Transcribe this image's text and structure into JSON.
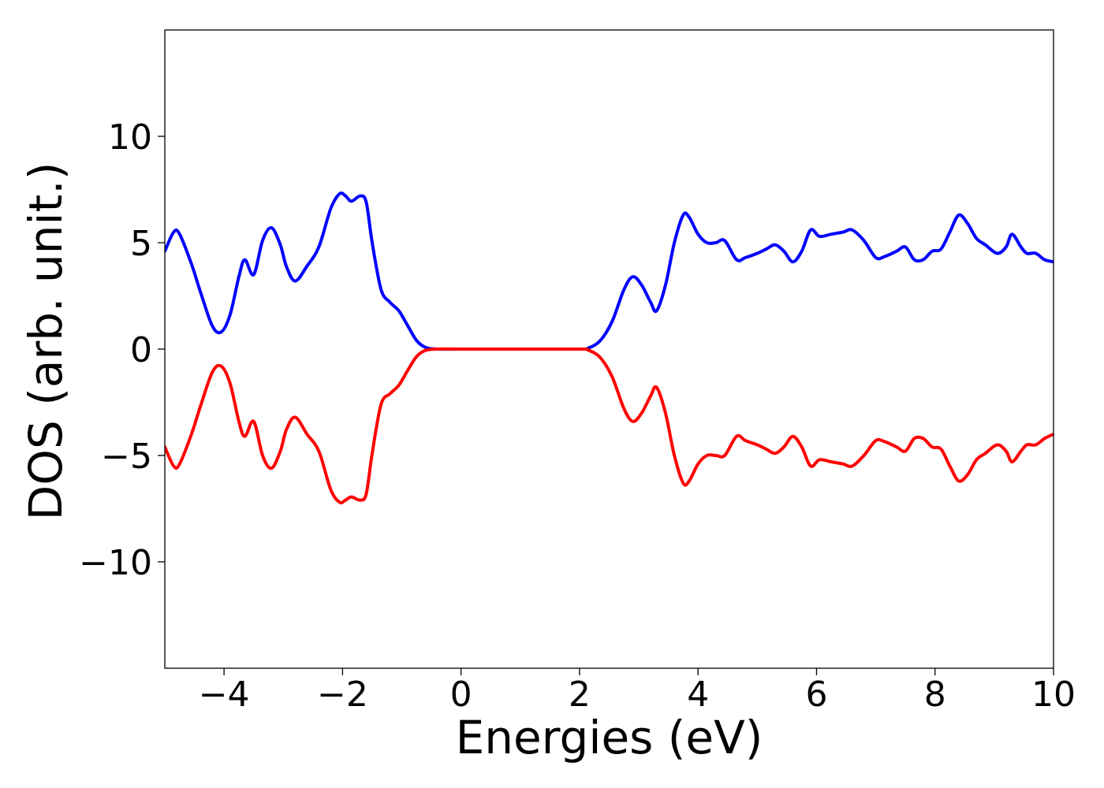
{
  "chart_data": {
    "type": "line",
    "title": "",
    "xlabel": "Energies (eV)",
    "ylabel": "DOS (arb. unit.)",
    "xlim": [
      -5,
      10
    ],
    "ylim": [
      -15,
      15
    ],
    "xticks": [
      -4,
      -2,
      0,
      2,
      4,
      6,
      8,
      10
    ],
    "xtick_labels": [
      "−4",
      "−2",
      "0",
      "2",
      "4",
      "6",
      "8",
      "10"
    ],
    "yticks": [
      -10,
      -5,
      0,
      5,
      10
    ],
    "ytick_labels": [
      "−10",
      "−5",
      "0",
      "5",
      "10"
    ],
    "grid": false,
    "legend": "none",
    "series": [
      {
        "color": "#0000ff",
        "points": [
          [
            -5.0,
            4.6
          ],
          [
            -4.85,
            5.5
          ],
          [
            -4.75,
            5.4
          ],
          [
            -4.55,
            4.0
          ],
          [
            -4.4,
            2.7
          ],
          [
            -4.2,
            1.1
          ],
          [
            -4.05,
            0.8
          ],
          [
            -3.9,
            1.6
          ],
          [
            -3.75,
            3.4
          ],
          [
            -3.65,
            4.2
          ],
          [
            -3.5,
            3.5
          ],
          [
            -3.35,
            5.1
          ],
          [
            -3.2,
            5.7
          ],
          [
            -3.05,
            4.9
          ],
          [
            -2.95,
            3.9
          ],
          [
            -2.8,
            3.2
          ],
          [
            -2.6,
            3.9
          ],
          [
            -2.4,
            4.8
          ],
          [
            -2.2,
            6.6
          ],
          [
            -2.05,
            7.3
          ],
          [
            -1.95,
            7.2
          ],
          [
            -1.85,
            6.95
          ],
          [
            -1.7,
            7.2
          ],
          [
            -1.6,
            6.9
          ],
          [
            -1.5,
            5.0
          ],
          [
            -1.35,
            2.8
          ],
          [
            -1.2,
            2.2
          ],
          [
            -1.05,
            1.8
          ],
          [
            -0.9,
            1.1
          ],
          [
            -0.75,
            0.4
          ],
          [
            -0.6,
            0.08
          ],
          [
            -0.4,
            0.0
          ],
          [
            0.0,
            0.0
          ],
          [
            1.0,
            0.0
          ],
          [
            2.0,
            0.0
          ],
          [
            2.15,
            0.05
          ],
          [
            2.35,
            0.4
          ],
          [
            2.55,
            1.3
          ],
          [
            2.75,
            2.8
          ],
          [
            2.9,
            3.4
          ],
          [
            3.05,
            3.0
          ],
          [
            3.2,
            2.2
          ],
          [
            3.3,
            1.8
          ],
          [
            3.45,
            3.0
          ],
          [
            3.6,
            5.0
          ],
          [
            3.75,
            6.3
          ],
          [
            3.85,
            6.2
          ],
          [
            4.0,
            5.4
          ],
          [
            4.15,
            5.0
          ],
          [
            4.3,
            5.0
          ],
          [
            4.45,
            5.1
          ],
          [
            4.65,
            4.2
          ],
          [
            4.8,
            4.3
          ],
          [
            5.0,
            4.5
          ],
          [
            5.15,
            4.7
          ],
          [
            5.3,
            4.9
          ],
          [
            5.45,
            4.6
          ],
          [
            5.6,
            4.1
          ],
          [
            5.75,
            4.6
          ],
          [
            5.9,
            5.6
          ],
          [
            6.05,
            5.3
          ],
          [
            6.25,
            5.4
          ],
          [
            6.45,
            5.5
          ],
          [
            6.6,
            5.6
          ],
          [
            6.8,
            5.1
          ],
          [
            7.0,
            4.3
          ],
          [
            7.15,
            4.35
          ],
          [
            7.35,
            4.6
          ],
          [
            7.5,
            4.8
          ],
          [
            7.65,
            4.2
          ],
          [
            7.8,
            4.2
          ],
          [
            7.95,
            4.6
          ],
          [
            8.1,
            4.7
          ],
          [
            8.25,
            5.5
          ],
          [
            8.4,
            6.3
          ],
          [
            8.55,
            5.9
          ],
          [
            8.7,
            5.2
          ],
          [
            8.85,
            4.9
          ],
          [
            9.05,
            4.5
          ],
          [
            9.2,
            4.8
          ],
          [
            9.3,
            5.4
          ],
          [
            9.45,
            4.8
          ],
          [
            9.55,
            4.5
          ],
          [
            9.7,
            4.5
          ],
          [
            9.85,
            4.2
          ],
          [
            10.0,
            4.1
          ]
        ]
      },
      {
        "color": "#ff0000",
        "points": [
          [
            -5.0,
            -4.6
          ],
          [
            -4.85,
            -5.5
          ],
          [
            -4.75,
            -5.4
          ],
          [
            -4.55,
            -4.0
          ],
          [
            -4.4,
            -2.7
          ],
          [
            -4.2,
            -1.1
          ],
          [
            -4.05,
            -0.8
          ],
          [
            -3.9,
            -1.6
          ],
          [
            -3.75,
            -3.4
          ],
          [
            -3.65,
            -4.1
          ],
          [
            -3.5,
            -3.4
          ],
          [
            -3.35,
            -5.0
          ],
          [
            -3.2,
            -5.6
          ],
          [
            -3.05,
            -4.8
          ],
          [
            -2.95,
            -3.8
          ],
          [
            -2.8,
            -3.2
          ],
          [
            -2.6,
            -4.0
          ],
          [
            -2.4,
            -4.8
          ],
          [
            -2.2,
            -6.6
          ],
          [
            -2.05,
            -7.2
          ],
          [
            -1.95,
            -7.1
          ],
          [
            -1.85,
            -6.95
          ],
          [
            -1.7,
            -7.1
          ],
          [
            -1.6,
            -6.8
          ],
          [
            -1.5,
            -4.9
          ],
          [
            -1.35,
            -2.6
          ],
          [
            -1.2,
            -2.1
          ],
          [
            -1.05,
            -1.7
          ],
          [
            -0.9,
            -1.0
          ],
          [
            -0.75,
            -0.35
          ],
          [
            -0.6,
            -0.06
          ],
          [
            -0.4,
            0.0
          ],
          [
            0.0,
            0.0
          ],
          [
            1.0,
            0.0
          ],
          [
            2.0,
            0.0
          ],
          [
            2.15,
            -0.05
          ],
          [
            2.35,
            -0.4
          ],
          [
            2.55,
            -1.3
          ],
          [
            2.75,
            -2.8
          ],
          [
            2.9,
            -3.4
          ],
          [
            3.05,
            -3.0
          ],
          [
            3.2,
            -2.2
          ],
          [
            3.3,
            -1.8
          ],
          [
            3.45,
            -3.0
          ],
          [
            3.6,
            -5.0
          ],
          [
            3.75,
            -6.3
          ],
          [
            3.85,
            -6.2
          ],
          [
            4.0,
            -5.4
          ],
          [
            4.15,
            -5.0
          ],
          [
            4.3,
            -5.0
          ],
          [
            4.45,
            -5.0
          ],
          [
            4.65,
            -4.1
          ],
          [
            4.8,
            -4.3
          ],
          [
            5.0,
            -4.5
          ],
          [
            5.15,
            -4.7
          ],
          [
            5.3,
            -4.9
          ],
          [
            5.45,
            -4.6
          ],
          [
            5.6,
            -4.1
          ],
          [
            5.75,
            -4.6
          ],
          [
            5.9,
            -5.5
          ],
          [
            6.05,
            -5.2
          ],
          [
            6.25,
            -5.3
          ],
          [
            6.45,
            -5.4
          ],
          [
            6.6,
            -5.5
          ],
          [
            6.8,
            -5.0
          ],
          [
            7.0,
            -4.3
          ],
          [
            7.15,
            -4.35
          ],
          [
            7.35,
            -4.6
          ],
          [
            7.5,
            -4.8
          ],
          [
            7.65,
            -4.2
          ],
          [
            7.8,
            -4.2
          ],
          [
            7.95,
            -4.6
          ],
          [
            8.1,
            -4.7
          ],
          [
            8.25,
            -5.5
          ],
          [
            8.4,
            -6.2
          ],
          [
            8.55,
            -5.9
          ],
          [
            8.7,
            -5.2
          ],
          [
            8.85,
            -4.9
          ],
          [
            9.05,
            -4.5
          ],
          [
            9.2,
            -4.8
          ],
          [
            9.3,
            -5.3
          ],
          [
            9.45,
            -4.8
          ],
          [
            9.55,
            -4.5
          ],
          [
            9.7,
            -4.5
          ],
          [
            9.85,
            -4.2
          ],
          [
            10.0,
            -4.0
          ]
        ]
      }
    ]
  }
}
